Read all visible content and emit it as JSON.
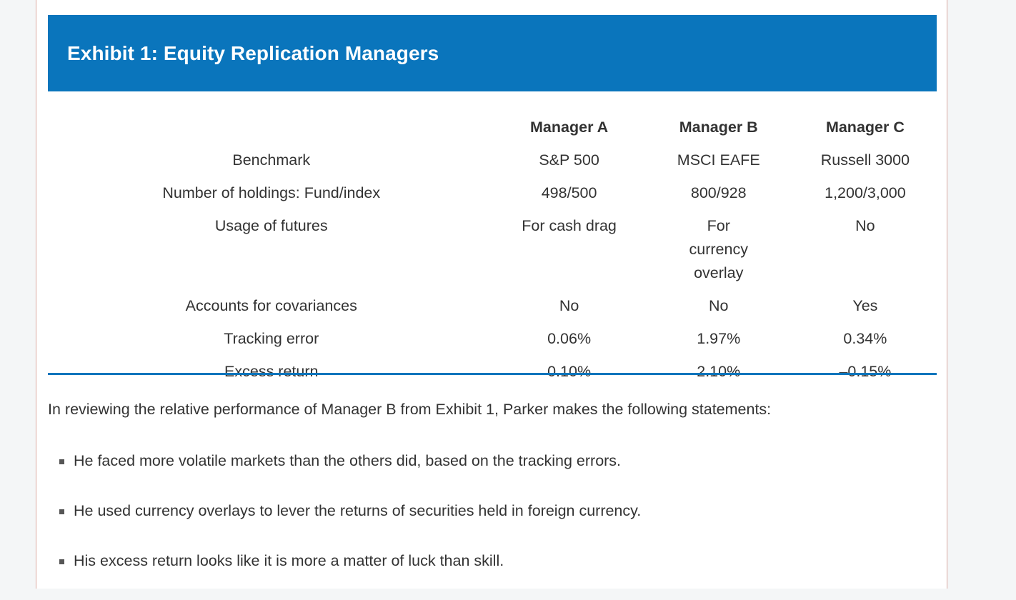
{
  "exhibit": {
    "title": "Exhibit 1:  Equity Replication Managers",
    "columns": [
      "",
      "Manager A",
      "Manager B",
      "Manager C"
    ],
    "rows": [
      {
        "label": "Benchmark",
        "a": "S&P 500",
        "b": "MSCI EAFE",
        "c": "Russell 3000"
      },
      {
        "label": "Number of holdings: Fund/index",
        "a": "498/500",
        "b": "800/928",
        "c": "1,200/3,000"
      },
      {
        "label": "Usage of futures",
        "a": "For cash drag",
        "b": "For currency overlay",
        "c": "No"
      },
      {
        "label": "Accounts for covariances",
        "a": "No",
        "b": "No",
        "c": "Yes"
      },
      {
        "label": "Tracking error",
        "a": "0.06%",
        "b": "1.97%",
        "c": "0.34%"
      },
      {
        "label": "Excess return",
        "a": "0.10%",
        "b": "2.10%",
        "c": "–0.15%"
      }
    ]
  },
  "intro": "In reviewing the relative performance of Manager B from Exhibit 1, Parker makes the following statements:",
  "statements": [
    "He faced more volatile markets than the others did, based on the tracking errors.",
    "He used currency overlays to lever the returns of securities held in foreign currency.",
    "His excess return looks like it is more a matter of luck than skill."
  ],
  "colors": {
    "header_bg": "#0a75bc",
    "header_text": "#ffffff",
    "body_text": "#333333",
    "rule": "#0a75bc",
    "page_border": "#d9a8a0"
  }
}
